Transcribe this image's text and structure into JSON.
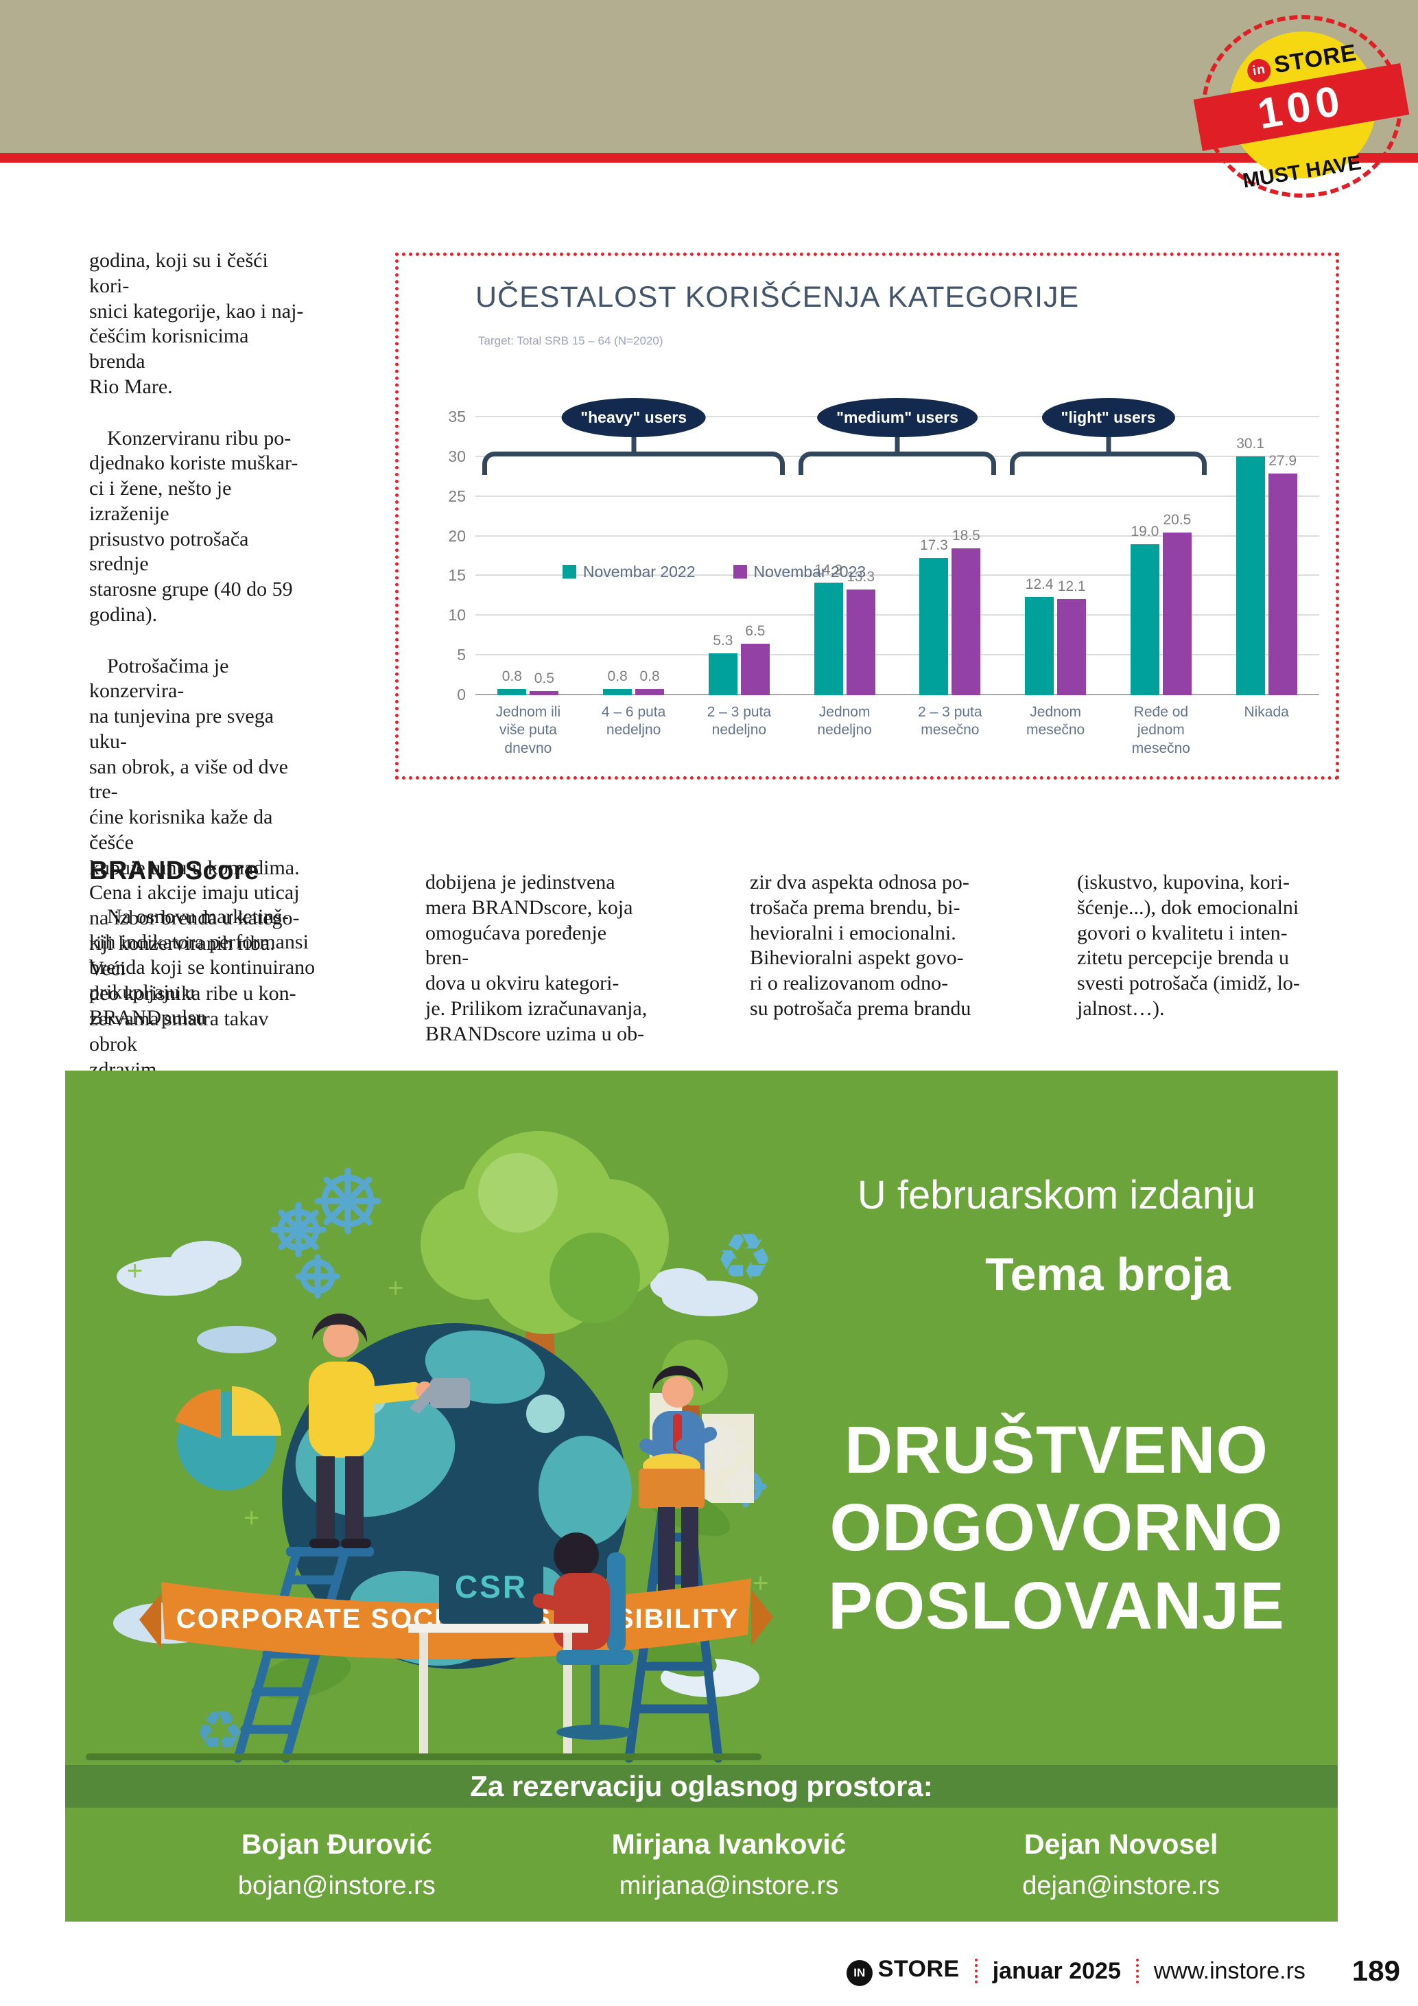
{
  "badge": {
    "in": "in",
    "store": "STORE",
    "number": "100",
    "must": "MUST HAVE"
  },
  "article": {
    "p1": "godina, koji su i češći kori-\nsnici kategorije, kao i naj-\nčešćim korisnicima brenda\nRio Mare.",
    "p2": "Konzerviranu ribu po-\ndjednako koriste muškar-\nci i žene, nešto je izraženije\nprisustvo potrošača srednje\nstarosne grupe (40 do 59\ngodina).",
    "p3": "Potrošačima je konzervira-\nna tunjevina pre svega uku-\nsan obrok, a više od dve tre-\nćine korisnika kaže da češće\nkupuje tunu u komadima.\nCena i akcije imaju uticaj\nna izbor brenda u katego-\nriji konzerviranih riba. Veći\ndeo korisnika ribe u kon-\nzervama smatra takav obrok\nzdravim.",
    "brandscore_heading": "BRANDScore",
    "col1": "Na osnovu marketinš-\nkih indikatora performansi\nbrenda koji se kontinuirano\nprikupljaju u BRANDpulsu",
    "col2": "dobijena je jedinstvena\nmera BRANDscore, koja\nomogućava poređenje bren-\ndova u okviru kategori-\nje. Prilikom izračunavanja,\nBRANDscore uzima u ob-",
    "col3": "zir dva aspekta odnosa po-\ntrošača prema brendu, bi-\nhevioralni i emocionalni.\nBihevioralni aspekt govo-\nri o realizovanom odno-\nsu potrošača prema brandu",
    "col4": "(iskustvo, kupovina, kori-\nšćenje...), dok emocionalni\ngovori o kvalitetu i inten-\nzitetu percepcije brenda u\nsvesti potrošača (imidž, lo-\njalnost…)."
  },
  "chart_panel": {
    "subtitle": "Target: Total SRB 15 – 64 (N=2020)"
  },
  "chart_data": {
    "type": "bar",
    "title": "UČESTALOST KORIŠĆENJA KATEGORIJE",
    "categories": [
      "Jednom ili\nviše puta\ndnevno",
      "4 – 6 puta\nnedeljno",
      "2 – 3 puta\nnedeljno",
      "Jednom\nnedeljno",
      "2 – 3 puta\nmesečno",
      "Jednom\nmesečno",
      "Ređe od\njednom\nmesečno",
      "Nikada"
    ],
    "series": [
      {
        "name": "Novembar 2022",
        "color": "#00a09b",
        "values": [
          0.8,
          0.8,
          5.3,
          14.2,
          17.3,
          12.4,
          19.0,
          30.1
        ],
        "labels": [
          "0.8",
          "0.8",
          "5.3",
          "14.2",
          "17.3",
          "12.4",
          "19.0",
          "30.1"
        ]
      },
      {
        "name": "Novembar 2023",
        "color": "#9341a5",
        "values": [
          0.5,
          0.8,
          6.5,
          13.3,
          18.5,
          12.1,
          20.5,
          27.9
        ],
        "labels": [
          "0.5",
          "0.8",
          "6.5",
          "13.3",
          "18.5",
          "12.1",
          "20.5",
          "27.9"
        ]
      }
    ],
    "ylim": [
      0,
      35
    ],
    "yticks": [
      0,
      5,
      10,
      15,
      20,
      25,
      30,
      35
    ],
    "grid": true,
    "legend_position": "bottom",
    "groups": [
      {
        "label": "\"heavy\" users",
        "from": 0,
        "to": 2
      },
      {
        "label": "\"medium\" users",
        "from": 3,
        "to": 4
      },
      {
        "label": "\"light\" users",
        "from": 5,
        "to": 6
      }
    ]
  },
  "ad": {
    "kicker": "U februarskom izdanju",
    "subtitle": "Tema broja",
    "title_lines": [
      "DRUŠTVENO",
      "ODGOVORNO",
      "POSLOVANJE"
    ],
    "ribbon": "CORPORATE SOCIAL RESPONSIBILITY",
    "monitor": "CSR",
    "strip": "Za rezervaciju oglasnog prostora:",
    "contacts": [
      {
        "name": "Bojan Đurović",
        "email": "bojan@instore.rs"
      },
      {
        "name": "Mirjana Ivanković",
        "email": "mirjana@instore.rs"
      },
      {
        "name": "Dejan Novosel",
        "email": "dejan@instore.rs"
      }
    ],
    "colors": {
      "bg": "#6ca43c",
      "strip": "#55893a"
    }
  },
  "footer": {
    "logo_in": "IN",
    "logo_store": "STORE",
    "date": "januar 2025",
    "site": "www.instore.rs",
    "page": "189"
  }
}
